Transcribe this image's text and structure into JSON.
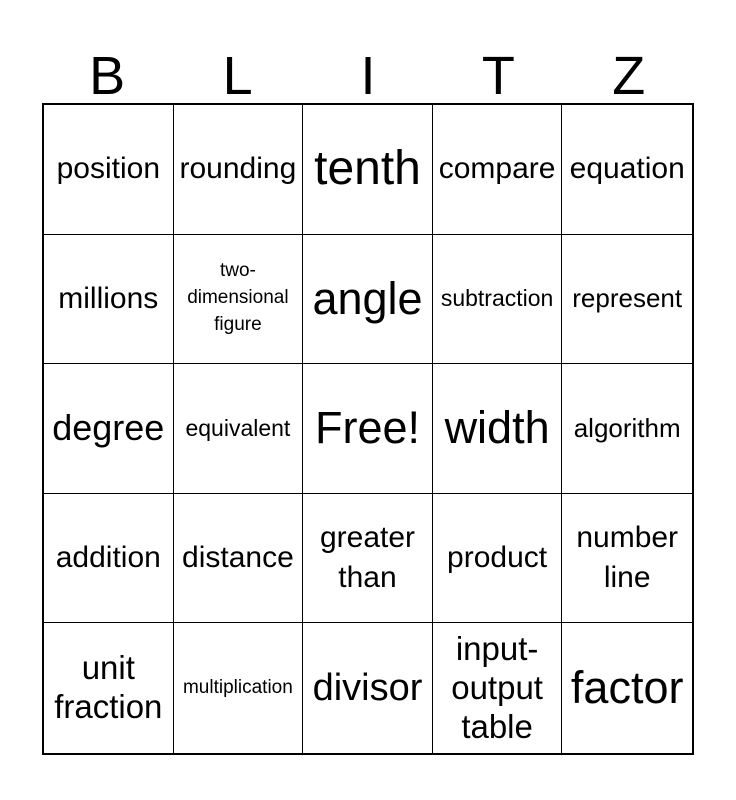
{
  "header": {
    "letters": [
      "B",
      "L",
      "I",
      "T",
      "Z"
    ]
  },
  "grid": {
    "rows": [
      [
        {
          "text": "position",
          "size": "s30"
        },
        {
          "text": "rounding",
          "size": "s30"
        },
        {
          "text": "tenth",
          "size": "s48"
        },
        {
          "text": "compare",
          "size": "s30"
        },
        {
          "text": "equation",
          "size": "s30"
        }
      ],
      [
        {
          "text": "millions",
          "size": "s30"
        },
        {
          "text": "two-\ndimensional\nfigure",
          "size": "s19"
        },
        {
          "text": "angle",
          "size": "s45"
        },
        {
          "text": "subtraction",
          "size": "s23"
        },
        {
          "text": "represent",
          "size": "s26"
        }
      ],
      [
        {
          "text": "degree",
          "size": "s36"
        },
        {
          "text": "equivalent",
          "size": "s23"
        },
        {
          "text": "Free!",
          "size": "s45"
        },
        {
          "text": "width",
          "size": "s45"
        },
        {
          "text": "algorithm",
          "size": "s26"
        }
      ],
      [
        {
          "text": "addition",
          "size": "s30"
        },
        {
          "text": "distance",
          "size": "s30"
        },
        {
          "text": "greater\nthan",
          "size": "s30"
        },
        {
          "text": "product",
          "size": "s30"
        },
        {
          "text": "number\nline",
          "size": "s30"
        }
      ],
      [
        {
          "text": "unit\nfraction",
          "size": "s33"
        },
        {
          "text": "multiplication",
          "size": "s19"
        },
        {
          "text": "divisor",
          "size": "s38"
        },
        {
          "text": "input-\noutput\ntable",
          "size": "s33"
        },
        {
          "text": "factor",
          "size": "s45"
        }
      ]
    ]
  },
  "colors": {
    "background": "#ffffff",
    "text": "#000000",
    "grid_lines": "#000000"
  }
}
